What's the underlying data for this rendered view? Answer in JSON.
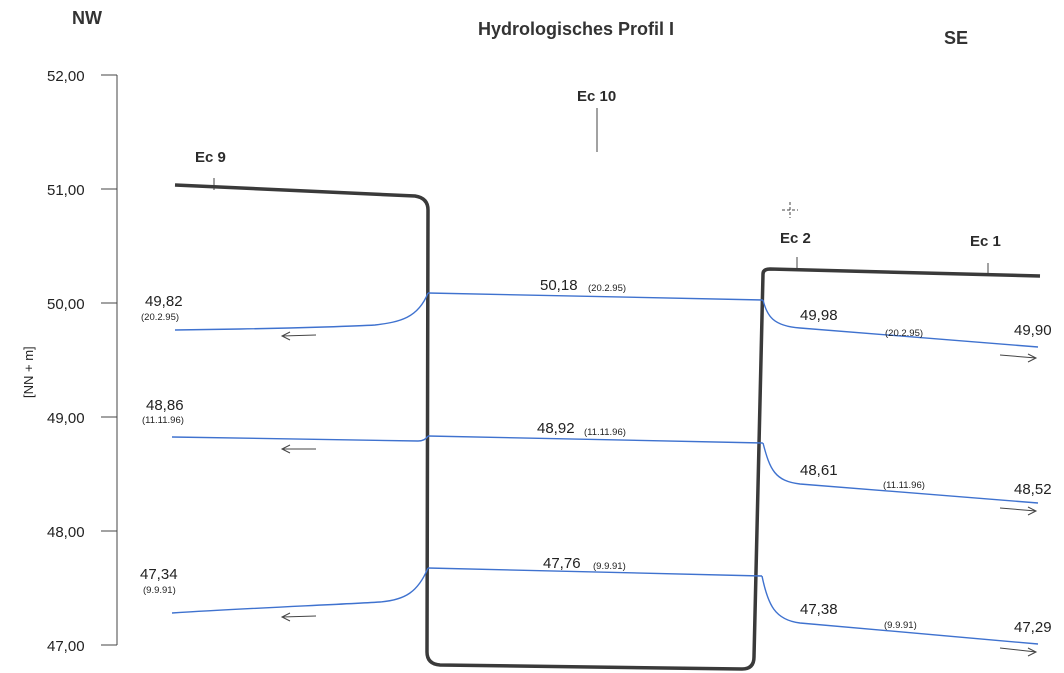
{
  "header": {
    "left": "NW",
    "center": "Hydrologisches Profil I",
    "right": "SE"
  },
  "y_axis": {
    "title": "[NN + m]",
    "ticks": [
      "52,00",
      "51,00",
      "50,00",
      "49,00",
      "48,00",
      "47,00"
    ]
  },
  "wells": [
    "Ec 9",
    "Ec 10",
    "Ec 2",
    "Ec 1"
  ],
  "groups": [
    {
      "center_value": "50,18",
      "center_date": "(20.2.95)",
      "left_value": "49,82",
      "left_date": "(20.2.95)",
      "right_value": "49,98",
      "right_date": "(20.2.95)",
      "far_right_value": "49,90"
    },
    {
      "center_value": "48,92",
      "center_date": "(11.11.96)",
      "left_value": "48,86",
      "left_date": "(11.11.96)",
      "right_value": "48,61",
      "right_date": "(11.11.96)",
      "far_right_value": "48,52"
    },
    {
      "center_value": "47,76",
      "center_date": "(9.9.91)",
      "left_value": "47,34",
      "left_date": "(9.9.91)",
      "right_value": "47,38",
      "right_date": "(9.9.91)",
      "far_right_value": "47,29"
    }
  ],
  "colors": {
    "water_line": "#3f72cf",
    "profile": "#3a3a3a",
    "text": "#222222"
  }
}
